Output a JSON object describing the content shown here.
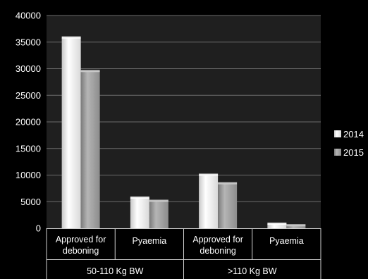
{
  "chart_data": {
    "type": "bar",
    "title": "",
    "xlabel": "",
    "ylabel": "",
    "ylim": [
      0,
      40000
    ],
    "yticks": [
      0,
      5000,
      10000,
      15000,
      20000,
      25000,
      30000,
      35000,
      40000
    ],
    "categories": [
      {
        "label": [
          "Approved for",
          "deboning"
        ],
        "group": "50-110 Kg BW"
      },
      {
        "label": [
          "Pyaemia"
        ],
        "group": "50-110 Kg BW"
      },
      {
        "label": [
          "Approved for",
          "deboning"
        ],
        "group": ">110 Kg BW"
      },
      {
        "label": [
          "Pyaemia"
        ],
        "group": ">110 Kg BW"
      }
    ],
    "groups": [
      "50-110 Kg BW",
      ">110 Kg BW"
    ],
    "series": [
      {
        "name": "2014",
        "values": [
          35800,
          5700,
          10000,
          800
        ]
      },
      {
        "name": "2015",
        "values": [
          29500,
          5100,
          8400,
          500
        ]
      }
    ],
    "grid": true,
    "legend_position": "right",
    "colors": {
      "background": "#000000",
      "plot_area": "#1f1f1f",
      "gridline": "#6b6b6b",
      "text": "#ffffff",
      "series_2014": "#f2f2f2",
      "series_2015": "#a6a6a6"
    }
  }
}
